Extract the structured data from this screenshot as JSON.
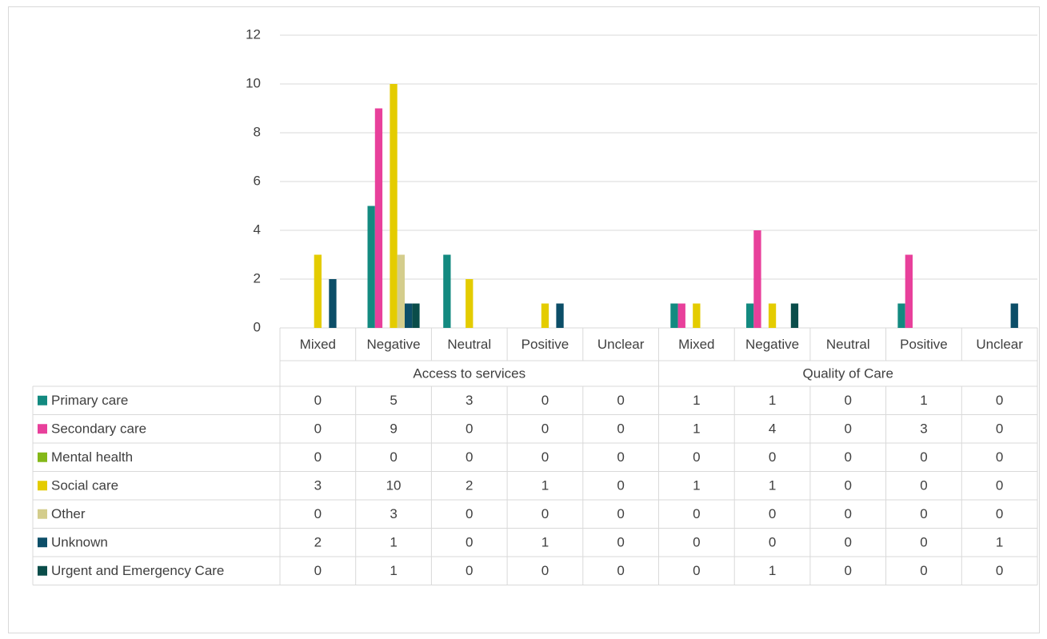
{
  "chart_data": {
    "type": "bar",
    "title": "",
    "xlabel": "",
    "ylabel": "",
    "ylim": [
      0,
      12
    ],
    "yticks": [
      "0",
      "2",
      "4",
      "6",
      "8",
      "10",
      "12"
    ],
    "grid": true,
    "legend": "data-table",
    "groups": [
      {
        "name": "Access to services",
        "categories": [
          "Mixed",
          "Negative",
          "Neutral",
          "Positive",
          "Unclear"
        ]
      },
      {
        "name": "Quality of Care",
        "categories": [
          "Mixed",
          "Negative",
          "Neutral",
          "Positive",
          "Unclear"
        ]
      }
    ],
    "series": [
      {
        "name": "Primary care",
        "color": "#138a80",
        "values": [
          0,
          5,
          3,
          0,
          0,
          1,
          1,
          0,
          1,
          0
        ]
      },
      {
        "name": "Secondary care",
        "color": "#e8409b",
        "values": [
          0,
          9,
          0,
          0,
          0,
          1,
          4,
          0,
          3,
          0
        ]
      },
      {
        "name": "Mental health",
        "color": "#84b818",
        "values": [
          0,
          0,
          0,
          0,
          0,
          0,
          0,
          0,
          0,
          0
        ]
      },
      {
        "name": "Social care",
        "color": "#e4cc00",
        "values": [
          3,
          10,
          2,
          1,
          0,
          1,
          1,
          0,
          0,
          0
        ]
      },
      {
        "name": "Other",
        "color": "#d4cd8c",
        "values": [
          0,
          3,
          0,
          0,
          0,
          0,
          0,
          0,
          0,
          0
        ]
      },
      {
        "name": "Unknown",
        "color": "#0c4e68",
        "values": [
          2,
          1,
          0,
          1,
          0,
          0,
          0,
          0,
          0,
          1
        ]
      },
      {
        "name": "Urgent and Emergency Care",
        "color": "#0a4d4a",
        "values": [
          0,
          1,
          0,
          0,
          0,
          0,
          1,
          0,
          0,
          0
        ]
      }
    ]
  }
}
